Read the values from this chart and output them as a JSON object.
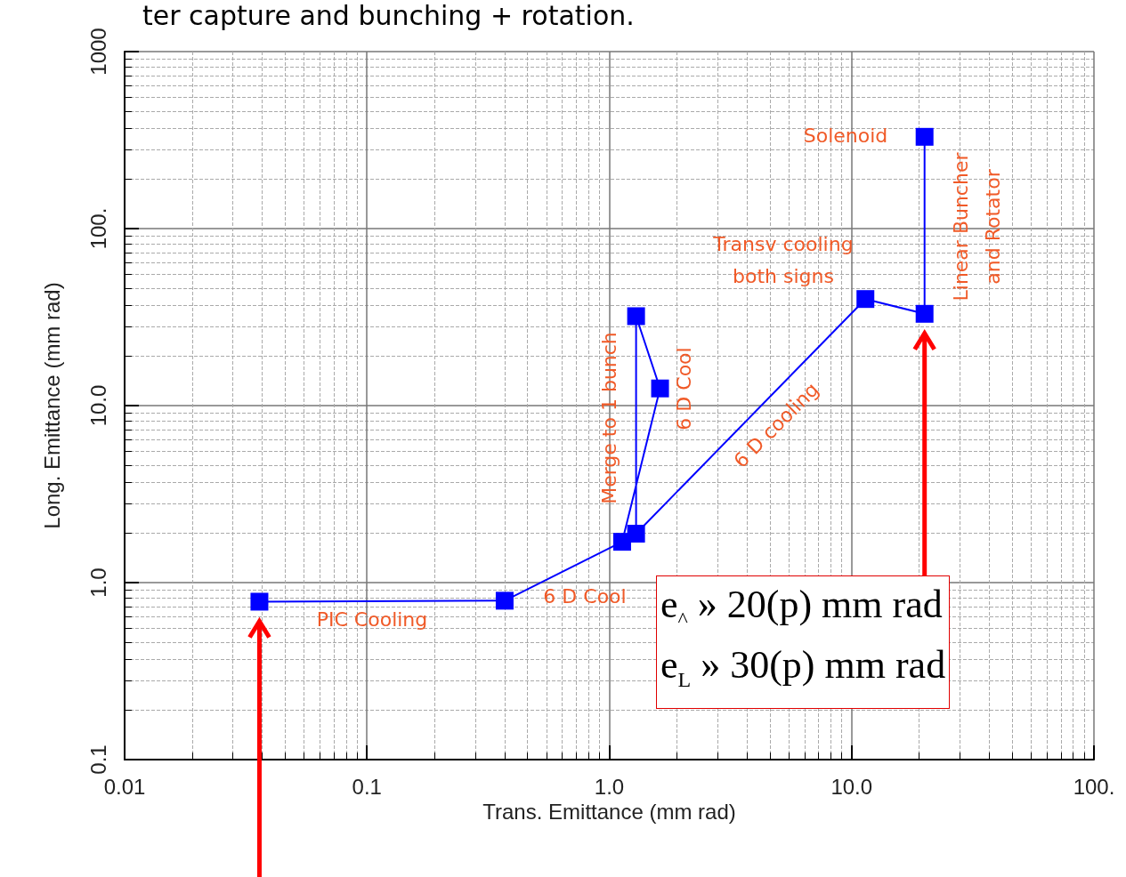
{
  "chart_data": {
    "type": "line",
    "title": "ter capture and bunching + rotation.",
    "xlabel": "Trans. Emittance (mm rad)",
    "ylabel": "Long. Emittance (mm rad)",
    "x": [
      20,
      20,
      11.4,
      1.29,
      1.29,
      1.62,
      1.13,
      0.37,
      0.036
    ],
    "series": [
      {
        "color": "#0000ff",
        "values": [
          330,
          33,
          40,
          1.89,
          32,
          12.5,
          1.7,
          0.79,
          0.78
        ]
      }
    ],
    "log": "xy",
    "xlim": [
      0.01,
      100
    ],
    "ylim": [
      0.1,
      1000
    ],
    "xticks": [
      0.01,
      0.1,
      {
        "value": 1,
        "label": "1.0"
      },
      {
        "value": 10,
        "label": "10.0"
      },
      {
        "value": 100,
        "label": "100."
      }
    ],
    "yticks": [
      0.1,
      {
        "value": 1,
        "label": "1.0"
      },
      {
        "value": 10,
        "label": "10.0"
      },
      {
        "value": 100,
        "label": "100."
      },
      1000
    ],
    "grid": true,
    "marker": "square",
    "line_style": "solid",
    "annotations": [
      "Solenoid",
      "Linear Buncher\nand Rotator",
      "Transv cooling\nboth signs",
      "6 D cooling",
      "6 D Cool",
      "Merge to 1 bunch",
      "6 D Cool",
      "PIC Cooling",
      "e$_{^}$ » 20(p) mm rad",
      "e$_{L}$ » 30(p) mm rad"
    ]
  }
}
